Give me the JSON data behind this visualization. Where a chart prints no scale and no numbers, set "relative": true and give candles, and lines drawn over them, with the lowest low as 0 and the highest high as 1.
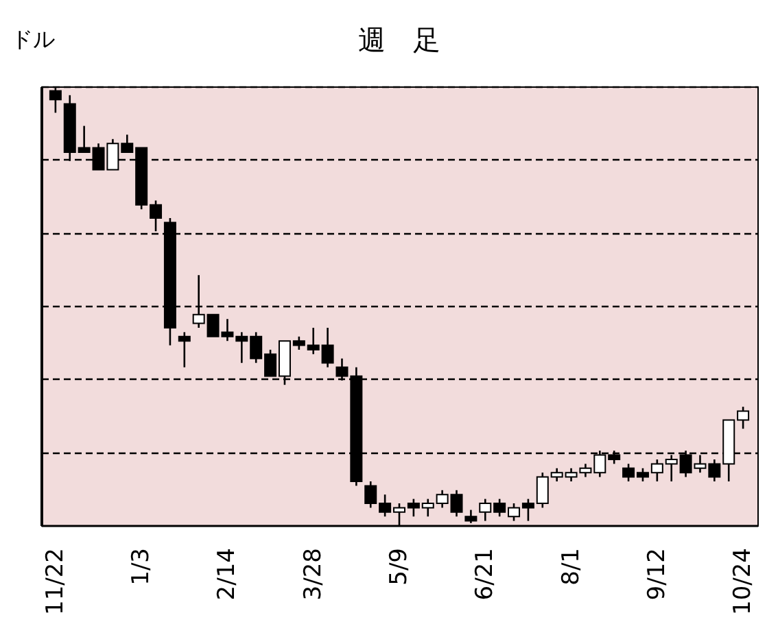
{
  "chart_data": {
    "type": "candlestick",
    "title": "週　足",
    "ylabel": "ドル",
    "relative": true,
    "grid": "y",
    "line_style": "dashed",
    "categories": [
      "11/22",
      null,
      null,
      null,
      null,
      null,
      "1/3",
      null,
      null,
      null,
      null,
      null,
      "2/14",
      null,
      null,
      null,
      null,
      null,
      "3/28",
      null,
      null,
      null,
      null,
      null,
      "5/9",
      null,
      null,
      null,
      null,
      null,
      "6/21",
      null,
      null,
      null,
      null,
      null,
      "8/1",
      null,
      null,
      null,
      null,
      null,
      "9/12",
      null,
      null,
      null,
      null,
      null,
      "10/24"
    ],
    "ohlc": [
      [
        0.99,
        1,
        0.94,
        0.97
      ],
      [
        0.96,
        0.98,
        0.83,
        0.85
      ],
      [
        0.86,
        0.91,
        0.85,
        0.85
      ],
      [
        0.86,
        0.87,
        0.81,
        0.81
      ],
      [
        0.81,
        0.88,
        0.81,
        0.87
      ],
      [
        0.87,
        0.89,
        0.85,
        0.85
      ],
      [
        0.86,
        0.86,
        0.72,
        0.73
      ],
      [
        0.73,
        0.74,
        0.67,
        0.7
      ],
      [
        0.69,
        0.7,
        0.41,
        0.45
      ],
      [
        0.43,
        0.44,
        0.36,
        0.42
      ],
      [
        0.46,
        0.57,
        0.45,
        0.48
      ],
      [
        0.48,
        0.48,
        0.43,
        0.43
      ],
      [
        0.44,
        0.47,
        0.42,
        0.43
      ],
      [
        0.43,
        0.44,
        0.37,
        0.42
      ],
      [
        0.43,
        0.44,
        0.37,
        0.38
      ],
      [
        0.39,
        0.4,
        0.34,
        0.34
      ],
      [
        0.34,
        0.42,
        0.32,
        0.42
      ],
      [
        0.42,
        0.43,
        0.4,
        0.41
      ],
      [
        0.41,
        0.45,
        0.39,
        0.4
      ],
      [
        0.41,
        0.45,
        0.36,
        0.37
      ],
      [
        0.36,
        0.38,
        0.33,
        0.34
      ],
      [
        0.34,
        0.36,
        0.09,
        0.1
      ],
      [
        0.09,
        0.1,
        0.04,
        0.05
      ],
      [
        0.05,
        0.07,
        0.02,
        0.03
      ],
      [
        0.03,
        0.05,
        0,
        0.04
      ],
      [
        0.05,
        0.06,
        0.02,
        0.04
      ],
      [
        0.04,
        0.06,
        0.02,
        0.05
      ],
      [
        0.05,
        0.08,
        0.04,
        0.07
      ],
      [
        0.07,
        0.08,
        0.02,
        0.03
      ],
      [
        0.02,
        0.035,
        0.005,
        0.01
      ],
      [
        0.03,
        0.06,
        0.01,
        0.05
      ],
      [
        0.05,
        0.06,
        0.02,
        0.03
      ],
      [
        0.02,
        0.05,
        0.01,
        0.04
      ],
      [
        0.05,
        0.06,
        0.01,
        0.04
      ],
      [
        0.05,
        0.12,
        0.04,
        0.11
      ],
      [
        0.11,
        0.13,
        0.1,
        0.12
      ],
      [
        0.11,
        0.13,
        0.1,
        0.12
      ],
      [
        0.12,
        0.14,
        0.11,
        0.13
      ],
      [
        0.12,
        0.17,
        0.11,
        0.16
      ],
      [
        0.16,
        0.17,
        0.14,
        0.15
      ],
      [
        0.13,
        0.14,
        0.1,
        0.11
      ],
      [
        0.12,
        0.13,
        0.1,
        0.11
      ],
      [
        0.12,
        0.15,
        0.1,
        0.14
      ],
      [
        0.14,
        0.16,
        0.1,
        0.15
      ],
      [
        0.16,
        0.17,
        0.11,
        0.12
      ],
      [
        0.13,
        0.16,
        0.12,
        0.14
      ],
      [
        0.14,
        0.15,
        0.1,
        0.11
      ],
      [
        0.14,
        0.24,
        0.1,
        0.24
      ],
      [
        0.24,
        0.27,
        0.22,
        0.26
      ]
    ]
  }
}
